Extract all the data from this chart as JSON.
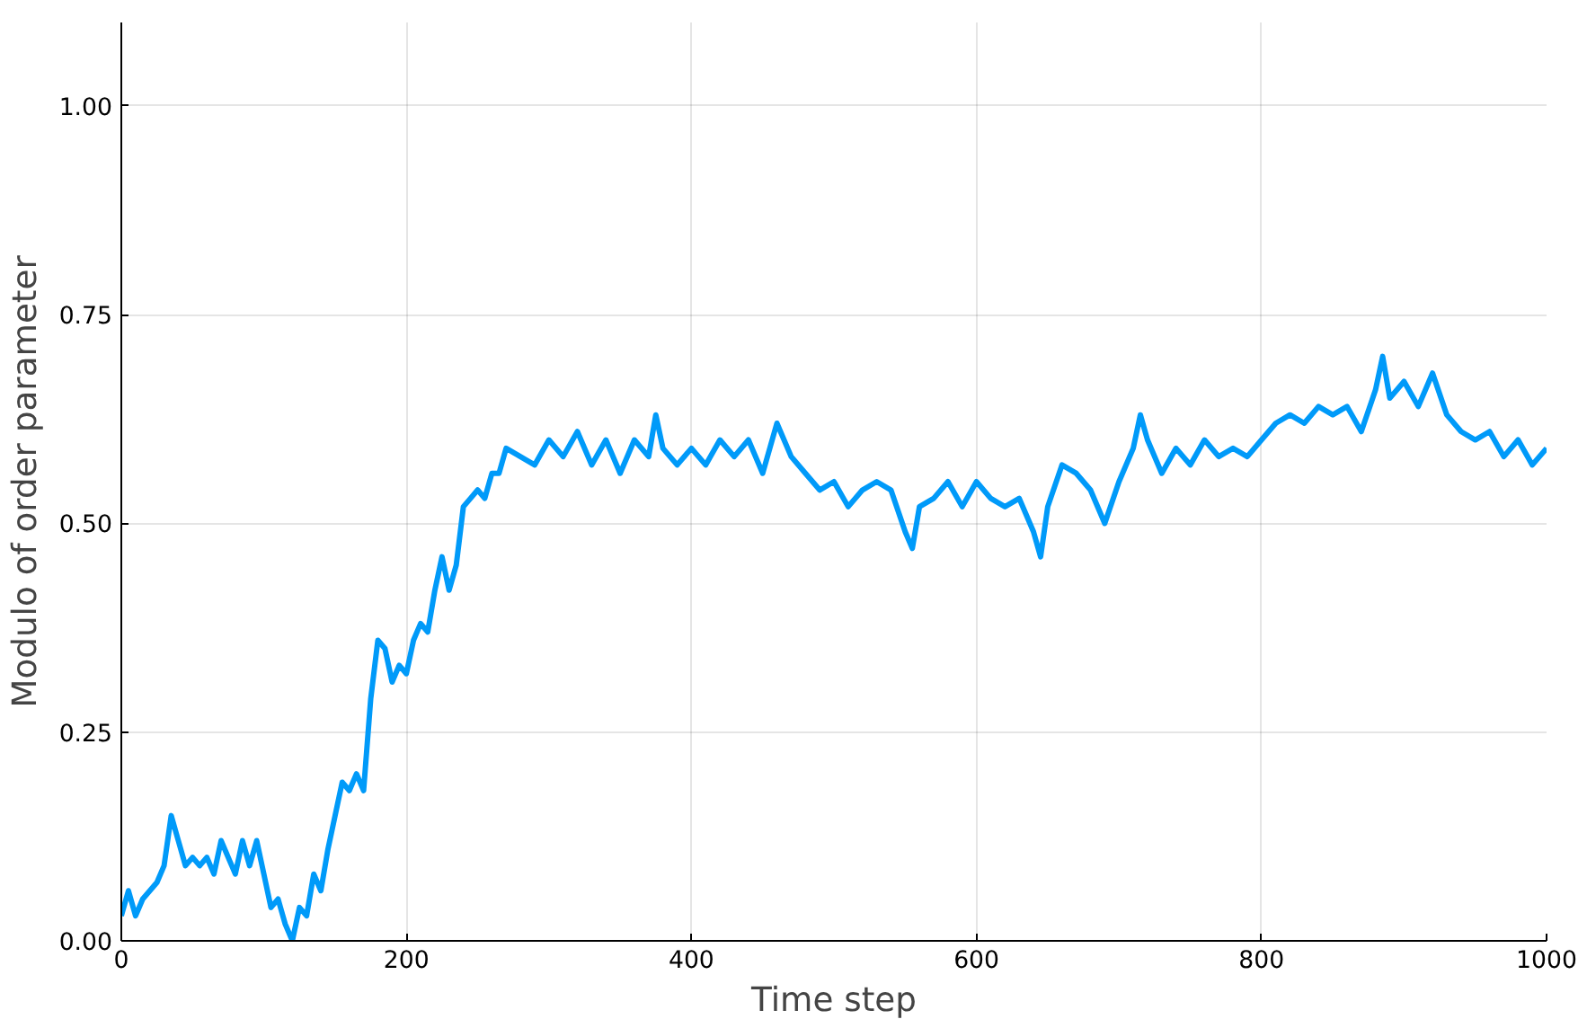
{
  "chart_data": {
    "type": "line",
    "xlabel": "Time step",
    "ylabel": "Modulo of order parameter",
    "xlim": [
      0,
      1000
    ],
    "ylim": [
      0,
      1.1
    ],
    "xticks": [
      0,
      200,
      400,
      600,
      800,
      1000
    ],
    "yticks": [
      {
        "value": 0,
        "label": "0.00"
      },
      0.25,
      {
        "value": 0.5,
        "label": "0.50"
      },
      0.75,
      {
        "value": 1,
        "label": "1.00"
      }
    ],
    "grid": true,
    "series": [
      {
        "color": "#009af9",
        "x": [
          0,
          5,
          10,
          15,
          20,
          25,
          30,
          35,
          40,
          45,
          50,
          55,
          60,
          65,
          70,
          75,
          80,
          85,
          90,
          95,
          100,
          105,
          110,
          115,
          120,
          125,
          130,
          135,
          140,
          145,
          150,
          155,
          160,
          165,
          170,
          175,
          180,
          185,
          190,
          195,
          200,
          205,
          210,
          215,
          220,
          225,
          230,
          235,
          240,
          245,
          250,
          255,
          260,
          265,
          270,
          280,
          290,
          300,
          310,
          320,
          330,
          340,
          350,
          360,
          370,
          375,
          380,
          390,
          400,
          410,
          420,
          430,
          440,
          450,
          460,
          470,
          480,
          490,
          500,
          510,
          520,
          530,
          540,
          550,
          555,
          560,
          570,
          580,
          590,
          600,
          610,
          620,
          630,
          640,
          645,
          650,
          660,
          670,
          680,
          690,
          700,
          710,
          715,
          720,
          730,
          740,
          750,
          760,
          770,
          780,
          790,
          800,
          810,
          820,
          830,
          840,
          850,
          860,
          870,
          880,
          885,
          890,
          900,
          910,
          920,
          930,
          940,
          950,
          960,
          970,
          980,
          990,
          1000
        ],
        "values": [
          0.03,
          0.06,
          0.03,
          0.05,
          0.06,
          0.07,
          0.09,
          0.15,
          0.12,
          0.09,
          0.1,
          0.09,
          0.1,
          0.08,
          0.12,
          0.1,
          0.08,
          0.12,
          0.09,
          0.12,
          0.08,
          0.04,
          0.05,
          0.02,
          0.0,
          0.04,
          0.03,
          0.08,
          0.06,
          0.11,
          0.15,
          0.19,
          0.18,
          0.2,
          0.18,
          0.29,
          0.36,
          0.35,
          0.31,
          0.33,
          0.32,
          0.36,
          0.38,
          0.37,
          0.42,
          0.46,
          0.42,
          0.45,
          0.52,
          0.53,
          0.54,
          0.53,
          0.56,
          0.56,
          0.59,
          0.58,
          0.57,
          0.6,
          0.58,
          0.61,
          0.57,
          0.6,
          0.56,
          0.6,
          0.58,
          0.63,
          0.59,
          0.57,
          0.59,
          0.57,
          0.6,
          0.58,
          0.6,
          0.56,
          0.62,
          0.58,
          0.56,
          0.54,
          0.55,
          0.52,
          0.54,
          0.55,
          0.54,
          0.49,
          0.47,
          0.52,
          0.53,
          0.55,
          0.52,
          0.55,
          0.53,
          0.52,
          0.53,
          0.49,
          0.46,
          0.52,
          0.57,
          0.56,
          0.54,
          0.5,
          0.55,
          0.59,
          0.63,
          0.6,
          0.56,
          0.59,
          0.57,
          0.6,
          0.58,
          0.59,
          0.58,
          0.6,
          0.62,
          0.63,
          0.62,
          0.64,
          0.63,
          0.64,
          0.61,
          0.66,
          0.7,
          0.65,
          0.67,
          0.64,
          0.68,
          0.63,
          0.61,
          0.6,
          0.61,
          0.58,
          0.6,
          0.57,
          0.59
        ]
      }
    ]
  }
}
